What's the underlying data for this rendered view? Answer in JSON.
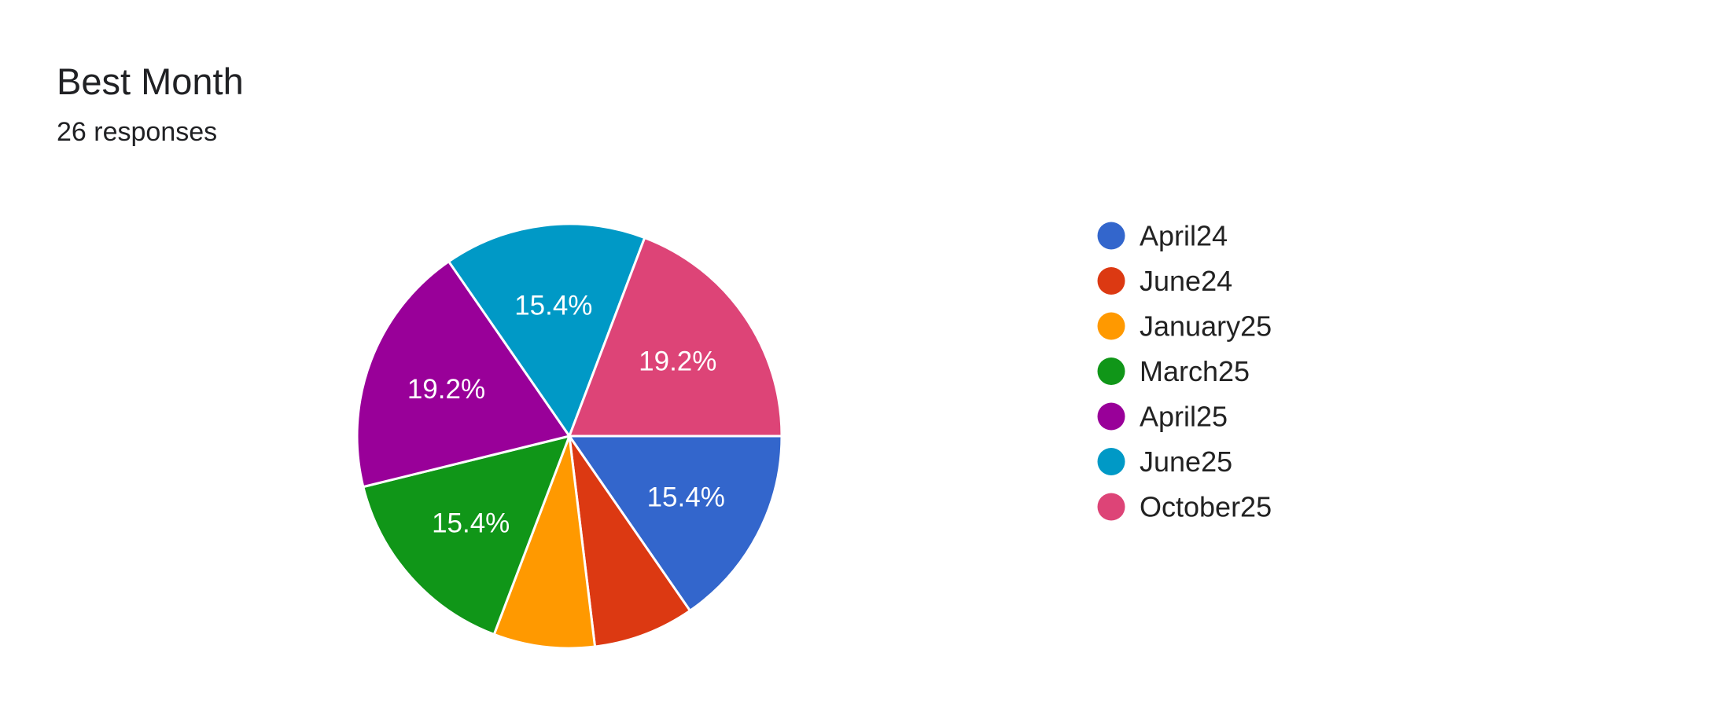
{
  "header": {
    "title": "Best Month",
    "subtitle": "26 responses"
  },
  "chart_data": {
    "type": "pie",
    "title": "Best Month",
    "total_responses": 26,
    "legend_position": "right",
    "slices": [
      {
        "label": "April24",
        "value": 4,
        "percent_label": "15.4%",
        "color": "#3366cc"
      },
      {
        "label": "June24",
        "value": 2,
        "percent_label": "",
        "color": "#dc3912"
      },
      {
        "label": "January25",
        "value": 2,
        "percent_label": "",
        "color": "#ff9900"
      },
      {
        "label": "March25",
        "value": 4,
        "percent_label": "15.4%",
        "color": "#109618"
      },
      {
        "label": "April25",
        "value": 5,
        "percent_label": "19.2%",
        "color": "#990099"
      },
      {
        "label": "June25",
        "value": 4,
        "percent_label": "15.4%",
        "color": "#0099c6"
      },
      {
        "label": "October25",
        "value": 5,
        "percent_label": "19.2%",
        "color": "#dd4477"
      }
    ]
  }
}
